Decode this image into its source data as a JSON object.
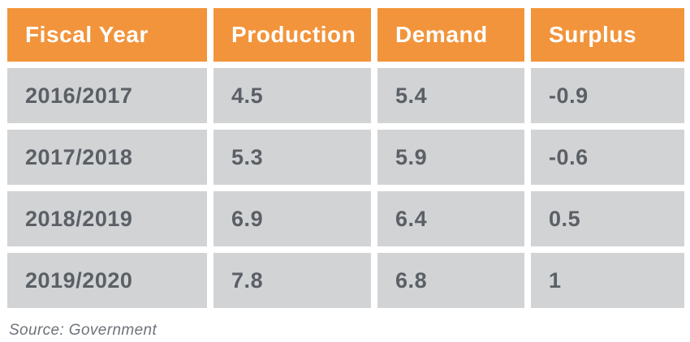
{
  "table": {
    "columns": [
      {
        "label": "Fiscal Year"
      },
      {
        "label": "Production"
      },
      {
        "label": "Demand"
      },
      {
        "label": "Surplus"
      }
    ],
    "rows": [
      {
        "cells": [
          "2016/2017",
          "4.5",
          "5.4",
          "-0.9"
        ]
      },
      {
        "cells": [
          "2017/2018",
          "5.3",
          "5.9",
          "-0.6"
        ]
      },
      {
        "cells": [
          "2018/2019",
          "6.9",
          "6.4",
          "0.5"
        ]
      },
      {
        "cells": [
          "2019/2020",
          "7.8",
          "6.8",
          "1"
        ]
      }
    ]
  },
  "source": {
    "label": "Source: Government"
  },
  "colors": {
    "header_bg": "#F2943B",
    "header_text": "#FFFFFF",
    "cell_bg": "#D2D3D5",
    "cell_text": "#5A6065",
    "source_text": "#6E737A"
  },
  "chart_data": {
    "type": "table",
    "columns": [
      "Fiscal Year",
      "Production",
      "Demand",
      "Surplus"
    ],
    "rows": [
      [
        "2016/2017",
        4.5,
        5.4,
        -0.9
      ],
      [
        "2017/2018",
        5.3,
        5.9,
        -0.6
      ],
      [
        "2018/2019",
        6.9,
        6.4,
        0.5
      ],
      [
        "2019/2020",
        7.8,
        6.8,
        1
      ]
    ],
    "source": "Source: Government"
  }
}
